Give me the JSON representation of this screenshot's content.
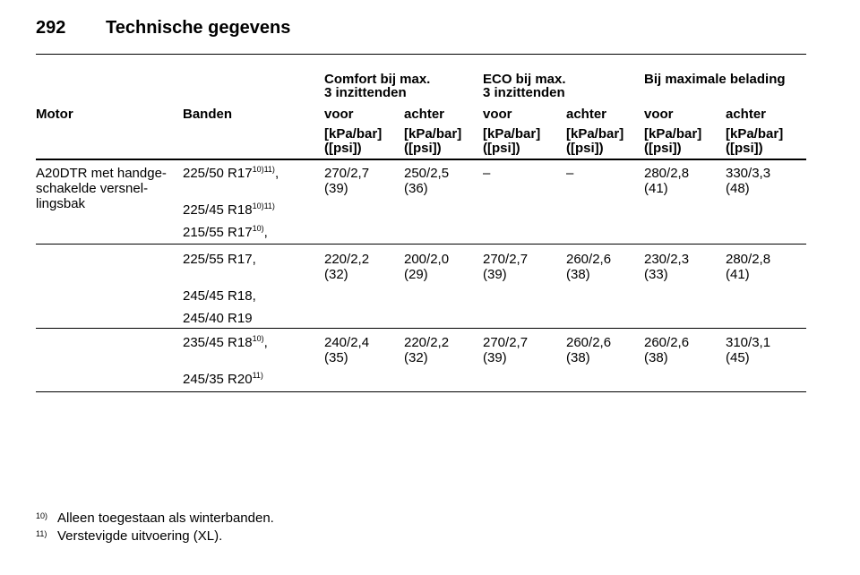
{
  "header": {
    "page": "292",
    "title": "Technische gegevens"
  },
  "table": {
    "group_headers": [
      [
        "Comfort bij max.",
        "3 inzittenden"
      ],
      [
        "ECO bij max.",
        "3 inzittenden"
      ],
      [
        "Bij maximale belading"
      ]
    ],
    "columns": [
      "Motor",
      "Banden",
      "voor",
      "achter",
      "voor",
      "achter",
      "voor",
      "achter"
    ],
    "units": [
      [
        "[kPa/bar]",
        "([psi])"
      ],
      [
        "[kPa/bar]",
        "([psi])"
      ],
      [
        "[kPa/bar]",
        "([psi])"
      ],
      [
        "[kPa/bar]",
        "([psi])"
      ],
      [
        "[kPa/bar]",
        "([psi])"
      ],
      [
        "[kPa/bar]",
        "([psi])"
      ]
    ],
    "rows": [
      {
        "motor": [
          "A20DTR met handge-",
          "schakelde versnel-",
          "lingsbak"
        ],
        "tyres": [
          {
            "size": "225/50 R17",
            "sup": "10)11)",
            "suffix": ","
          },
          {
            "size": "225/45 R18",
            "sup": "10)11)"
          },
          {
            "size": "215/55 R17",
            "sup": "10)",
            "suffix": ","
          }
        ],
        "values": [
          [
            "270/2,7",
            "(39)"
          ],
          [
            "250/2,5",
            "(36)"
          ],
          [
            "–"
          ],
          [
            "–"
          ],
          [
            "280/2,8",
            "(41)"
          ],
          [
            "330/3,3",
            "(48)"
          ]
        ]
      },
      {
        "tyres": [
          {
            "size": "225/55 R17,"
          },
          {
            "size": "245/45 R18,"
          },
          {
            "size": "245/40 R19"
          }
        ],
        "values": [
          [
            "220/2,2",
            "(32)"
          ],
          [
            "200/2,0",
            "(29)"
          ],
          [
            "270/2,7",
            "(39)"
          ],
          [
            "260/2,6",
            "(38)"
          ],
          [
            "230/2,3",
            "(33)"
          ],
          [
            "280/2,8",
            "(41)"
          ]
        ]
      },
      {
        "tyres": [
          {
            "size": "235/45 R18",
            "sup": "10)",
            "suffix": ","
          },
          {
            "size": "245/35 R20",
            "sup": "11)"
          }
        ],
        "values": [
          [
            "240/2,4",
            "(35)"
          ],
          [
            "220/2,2",
            "(32)"
          ],
          [
            "270/2,7",
            "(39)"
          ],
          [
            "260/2,6",
            "(38)"
          ],
          [
            "260/2,6",
            "(38)"
          ],
          [
            "310/3,1",
            "(45)"
          ]
        ]
      }
    ]
  },
  "footnotes": [
    {
      "mark": "10)",
      "text": "Alleen toegestaan als winterbanden."
    },
    {
      "mark": "11)",
      "text": "Verstevigde uitvoering (XL)."
    }
  ]
}
